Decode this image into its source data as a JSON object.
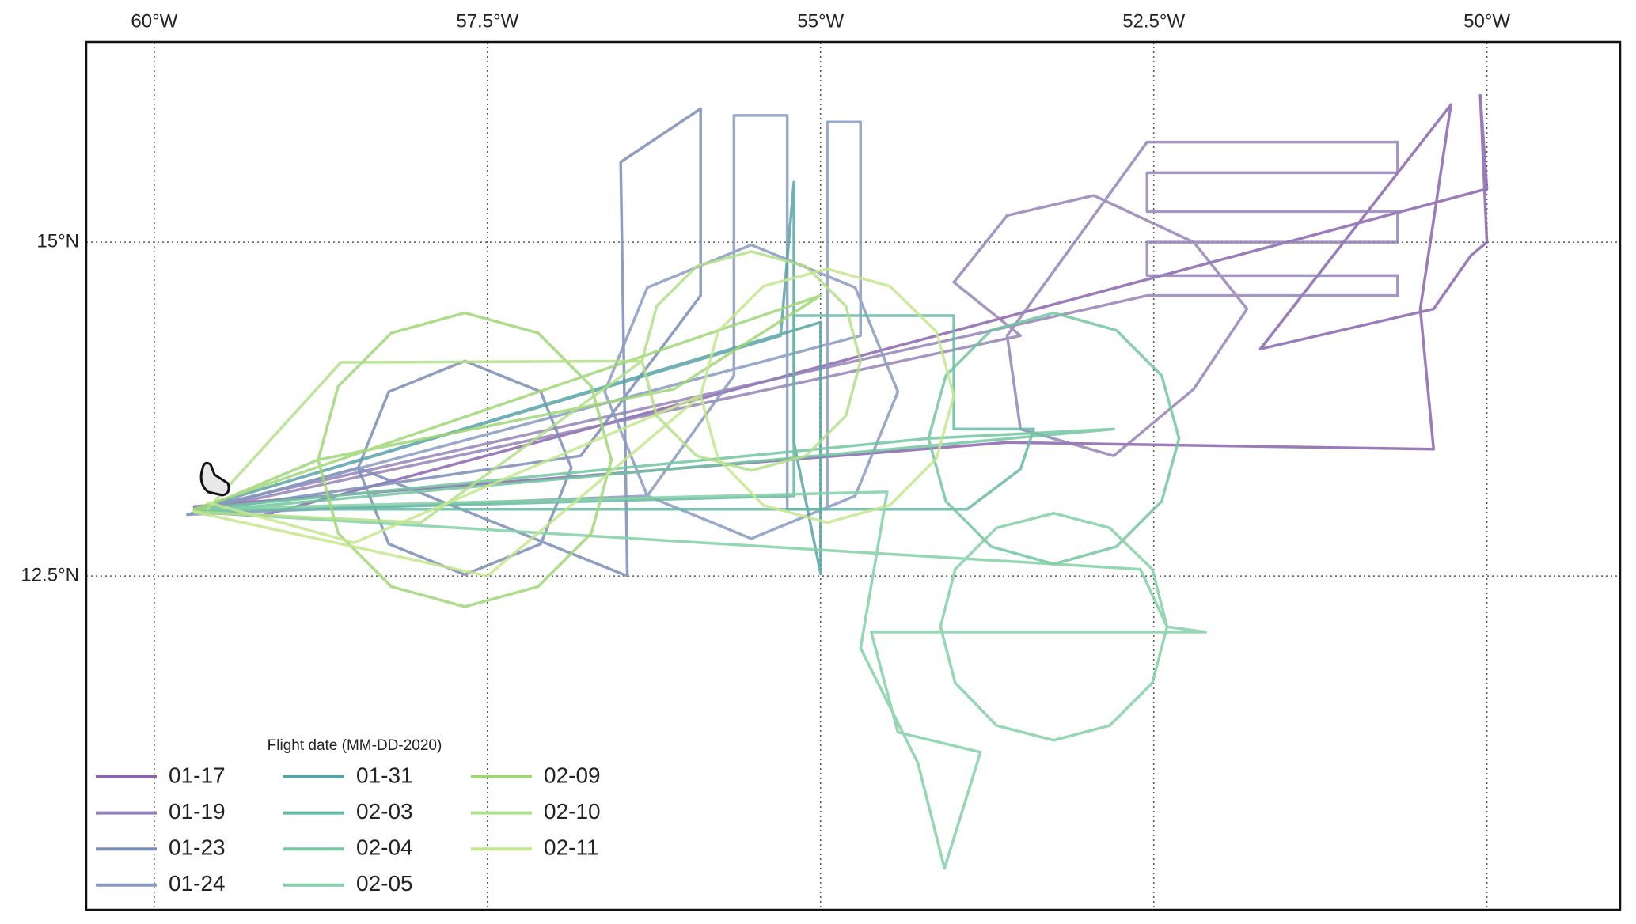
{
  "chart_data": {
    "type": "map-tracks",
    "legend_title": "Flight date (MM-DD-2020)",
    "legend_loc": "lower left",
    "grid": true,
    "xlim": [
      -60.51,
      -49.0
    ],
    "ylim": [
      10.0,
      16.5
    ],
    "xticks": [
      {
        "value": -60,
        "label": "60°W"
      },
      {
        "value": -57.5,
        "label": "57.5°W"
      },
      {
        "value": -55,
        "label": "55°W"
      },
      {
        "value": -52.5,
        "label": "52.5°W"
      },
      {
        "value": -50,
        "label": "50°W"
      }
    ],
    "yticks": [
      {
        "value": 15,
        "label": "15°N"
      },
      {
        "value": 12.5,
        "label": "12.5°N"
      }
    ],
    "series": [
      {
        "name": "01-17",
        "color": "#8a64ad",
        "x": [
          -59.7,
          -59.2,
          -50.0,
          -50.05,
          -50.0,
          -50.12,
          -50.4,
          -51.7,
          -50.27,
          -50.5,
          -50.4,
          -53.6,
          -59.7
        ],
        "values": [
          12.98,
          12.95,
          15.4,
          16.1,
          15.0,
          14.9,
          14.5,
          14.2,
          16.03,
          14.5,
          13.45,
          13.5,
          13.02
        ]
      },
      {
        "name": "01-19",
        "color": "#9482b6",
        "x": [
          -59.7,
          -53.5,
          -54.0,
          -53.6,
          -52.95,
          -52.2,
          -51.8,
          -52.2,
          -52.8,
          -53.5,
          -53.6,
          -52.55,
          -50.67,
          -50.67,
          -52.55,
          -52.55,
          -50.67,
          -50.67,
          -52.55,
          -52.55,
          -50.67,
          -50.67,
          -52.55,
          -59.7
        ],
        "values": [
          12.98,
          14.3,
          14.7,
          15.2,
          15.35,
          15.0,
          14.5,
          13.9,
          13.4,
          13.6,
          14.3,
          15.75,
          15.75,
          15.52,
          15.52,
          15.23,
          15.23,
          15.0,
          15.0,
          14.75,
          14.75,
          14.6,
          14.6,
          13.0
        ]
      },
      {
        "name": "01-23",
        "color": "#7b8db5",
        "x": [
          -59.75,
          -58.47,
          -58.24,
          -57.67,
          -57.1,
          -56.87,
          -57.1,
          -57.67,
          -58.24,
          -58.47,
          -56.45,
          -56.5,
          -55.9,
          -55.9,
          -56.8,
          -59.7
        ],
        "values": [
          12.96,
          13.31,
          13.88,
          14.11,
          13.88,
          13.31,
          12.74,
          12.51,
          12.74,
          13.31,
          12.5,
          15.6,
          16.0,
          14.6,
          13.4,
          12.98
        ]
      },
      {
        "name": "01-24",
        "color": "#889ac0",
        "x": [
          -59.75,
          -56.3,
          -55.52,
          -54.74,
          -54.42,
          -54.74,
          -55.52,
          -56.3,
          -56.62,
          -56.3,
          -55.65,
          -55.65,
          -55.25,
          -55.25,
          -54.95,
          -54.95,
          -54.7,
          -54.7,
          -59.7
        ],
        "values": [
          12.96,
          13.1,
          12.78,
          13.1,
          13.88,
          14.66,
          14.98,
          14.66,
          13.88,
          13.1,
          14.0,
          15.95,
          15.95,
          13.0,
          13.0,
          15.9,
          15.9,
          14.3,
          12.98
        ]
      },
      {
        "name": "01-31",
        "color": "#58a3a6",
        "x": [
          -59.7,
          -55.3,
          -55.2,
          -55.2,
          -55.0,
          -55.0,
          -59.7
        ],
        "values": [
          13.0,
          14.3,
          15.45,
          13.5,
          12.52,
          14.4,
          13.0
        ]
      },
      {
        "name": "02-03",
        "color": "#66b9a5",
        "x": [
          -59.7,
          -53.9,
          -53.5,
          -53.4,
          -54.0,
          -54.0,
          -55.2,
          -55.2,
          -59.7
        ],
        "values": [
          13.0,
          13.0,
          13.3,
          13.6,
          13.6,
          14.45,
          14.45,
          13.1,
          12.98
        ]
      },
      {
        "name": "02-04",
        "color": "#72c6a0",
        "x": [
          -59.7,
          -54.19,
          -54.06,
          -53.72,
          -53.25,
          -52.78,
          -52.44,
          -52.31,
          -52.44,
          -52.78,
          -53.25,
          -53.72,
          -54.06,
          -54.19,
          -52.8,
          -59.7
        ],
        "values": [
          13.0,
          13.53,
          14.0,
          14.34,
          14.47,
          14.34,
          14.0,
          13.53,
          13.06,
          12.72,
          12.59,
          12.72,
          13.06,
          13.53,
          13.6,
          12.98
        ]
      },
      {
        "name": "02-05",
        "color": "#84d0a6",
        "x": [
          -59.7,
          -54.5,
          -54.7,
          -54.27,
          -54.07,
          -53.8,
          -54.42,
          -54.62,
          -52.11,
          -52.4,
          -52.51,
          -52.83,
          -53.25,
          -53.68,
          -53.99,
          -54.1,
          -53.99,
          -53.68,
          -53.25,
          -52.83,
          -52.51,
          -52.4,
          -52.6,
          -59.7
        ],
        "values": [
          13.0,
          13.13,
          11.96,
          11.1,
          10.31,
          11.18,
          11.33,
          12.08,
          12.08,
          12.12,
          12.55,
          12.86,
          12.97,
          12.86,
          12.55,
          12.12,
          11.7,
          11.38,
          11.27,
          11.38,
          11.7,
          12.12,
          12.55,
          12.98
        ]
      },
      {
        "name": "02-09",
        "color": "#9fd676",
        "x": [
          -59.7,
          -58.77,
          -58.62,
          -58.22,
          -57.67,
          -57.12,
          -56.72,
          -56.57,
          -56.72,
          -57.12,
          -57.67,
          -58.22,
          -58.62,
          -58.77,
          -56.1,
          -55.0,
          -59.7
        ],
        "values": [
          12.98,
          13.37,
          13.92,
          14.32,
          14.47,
          14.32,
          13.92,
          13.37,
          12.82,
          12.42,
          12.27,
          12.42,
          12.82,
          13.37,
          13.9,
          14.6,
          13.0
        ]
      },
      {
        "name": "02-10",
        "color": "#b2df8a",
        "x": [
          -59.7,
          -58.0,
          -56.34,
          -56.23,
          -55.93,
          -55.52,
          -55.11,
          -54.81,
          -54.7,
          -54.81,
          -55.11,
          -55.52,
          -55.93,
          -56.23,
          -56.34,
          -58.6,
          -59.6
        ],
        "values": [
          12.98,
          12.9,
          14.11,
          14.52,
          14.82,
          14.93,
          14.82,
          14.52,
          14.11,
          13.7,
          13.4,
          13.29,
          13.4,
          13.7,
          14.11,
          14.1,
          13.0
        ]
      },
      {
        "name": "02-11",
        "color": "#c4e68e",
        "x": [
          -59.7,
          -57.5,
          -55.9,
          -55.77,
          -55.43,
          -54.95,
          -54.48,
          -54.13,
          -54.0,
          -54.13,
          -54.48,
          -54.95,
          -55.43,
          -55.77,
          -55.9,
          -58.5,
          -59.6
        ],
        "values": [
          12.98,
          12.5,
          13.85,
          14.33,
          14.67,
          14.8,
          14.67,
          14.33,
          13.85,
          13.38,
          13.03,
          12.9,
          13.03,
          13.38,
          13.85,
          12.75,
          13.05
        ]
      }
    ]
  }
}
